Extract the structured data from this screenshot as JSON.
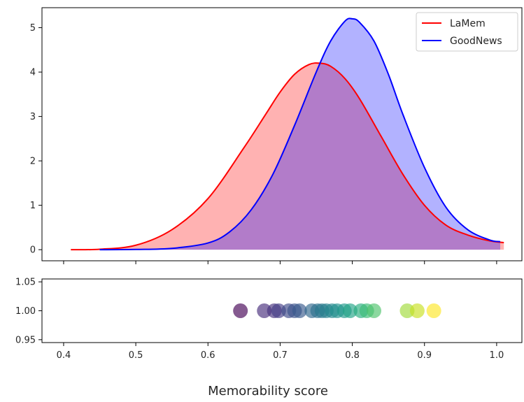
{
  "chart_data": [
    {
      "type": "area",
      "title": "",
      "xlabel": "",
      "ylabel": "",
      "xlim": [
        0.37,
        1.035
      ],
      "ylim": [
        -0.25,
        5.45
      ],
      "x_ticks": [
        0.4,
        0.5,
        0.6,
        0.7,
        0.8,
        0.9,
        1.0
      ],
      "y_ticks": [
        0,
        1,
        2,
        3,
        4,
        5
      ],
      "y_tick_labels": [
        "0",
        "1",
        "2",
        "3",
        "4",
        "5"
      ],
      "legend_position": "top-right",
      "series": [
        {
          "name": "LaMem",
          "line_color": "#ff0000",
          "fill_color": "#ff0000",
          "fill_opacity": 0.3,
          "x": [
            0.41,
            0.45,
            0.5,
            0.55,
            0.6,
            0.65,
            0.68,
            0.7,
            0.72,
            0.74,
            0.755,
            0.77,
            0.79,
            0.81,
            0.84,
            0.87,
            0.9,
            0.93,
            0.96,
            0.99,
            1.01
          ],
          "y": [
            0.0,
            0.01,
            0.1,
            0.45,
            1.15,
            2.3,
            3.05,
            3.55,
            3.95,
            4.17,
            4.2,
            4.13,
            3.85,
            3.4,
            2.55,
            1.7,
            1.0,
            0.55,
            0.33,
            0.2,
            0.16
          ]
        },
        {
          "name": "GoodNews",
          "line_color": "#0000ff",
          "fill_color": "#0000ff",
          "fill_opacity": 0.3,
          "x": [
            0.45,
            0.5,
            0.55,
            0.6,
            0.63,
            0.66,
            0.69,
            0.72,
            0.75,
            0.77,
            0.79,
            0.8,
            0.81,
            0.83,
            0.85,
            0.87,
            0.9,
            0.93,
            0.96,
            0.99,
            1.005
          ],
          "y": [
            0.0,
            0.005,
            0.03,
            0.15,
            0.4,
            0.9,
            1.7,
            2.8,
            4.0,
            4.7,
            5.15,
            5.2,
            5.12,
            4.7,
            3.95,
            3.05,
            1.85,
            0.95,
            0.45,
            0.22,
            0.18
          ]
        }
      ]
    },
    {
      "type": "scatter",
      "title": "",
      "xlabel": "Memorability score",
      "ylabel": "",
      "xlim": [
        0.37,
        1.035
      ],
      "ylim": [
        0.945,
        1.055
      ],
      "x_ticks": [
        0.4,
        0.5,
        0.6,
        0.7,
        0.8,
        0.9,
        1.0
      ],
      "x_tick_labels": [
        "0.4",
        "0.5",
        "0.6",
        "0.7",
        "0.8",
        "0.9",
        "1.0"
      ],
      "y_ticks": [
        0.95,
        1.0,
        1.05
      ],
      "y_tick_labels": [
        "0.95",
        "1.00",
        "1.05"
      ],
      "colormap": "viridis",
      "marker_opacity": 0.65,
      "points": [
        {
          "x": 0.645,
          "y": 1.0,
          "color": "#440154"
        },
        {
          "x": 0.678,
          "y": 1.0,
          "color": "#472d7b"
        },
        {
          "x": 0.692,
          "y": 1.0,
          "color": "#46337e"
        },
        {
          "x": 0.698,
          "y": 1.0,
          "color": "#433e85"
        },
        {
          "x": 0.712,
          "y": 1.0,
          "color": "#3e4989"
        },
        {
          "x": 0.72,
          "y": 1.0,
          "color": "#3b528b"
        },
        {
          "x": 0.727,
          "y": 1.0,
          "color": "#38598c"
        },
        {
          "x": 0.744,
          "y": 1.0,
          "color": "#31688e"
        },
        {
          "x": 0.752,
          "y": 1.0,
          "color": "#2d708e"
        },
        {
          "x": 0.758,
          "y": 1.0,
          "color": "#2a788e"
        },
        {
          "x": 0.764,
          "y": 1.0,
          "color": "#27808e"
        },
        {
          "x": 0.772,
          "y": 1.0,
          "color": "#24878e"
        },
        {
          "x": 0.779,
          "y": 1.0,
          "color": "#21908d"
        },
        {
          "x": 0.789,
          "y": 1.0,
          "color": "#1f988b"
        },
        {
          "x": 0.797,
          "y": 1.0,
          "color": "#20a386"
        },
        {
          "x": 0.812,
          "y": 1.0,
          "color": "#28ae80"
        },
        {
          "x": 0.82,
          "y": 1.0,
          "color": "#3bbb75"
        },
        {
          "x": 0.83,
          "y": 1.0,
          "color": "#4ec36b"
        },
        {
          "x": 0.876,
          "y": 1.0,
          "color": "#a0da39"
        },
        {
          "x": 0.89,
          "y": 1.0,
          "color": "#c8e020"
        },
        {
          "x": 0.913,
          "y": 1.0,
          "color": "#fde725"
        }
      ]
    }
  ]
}
